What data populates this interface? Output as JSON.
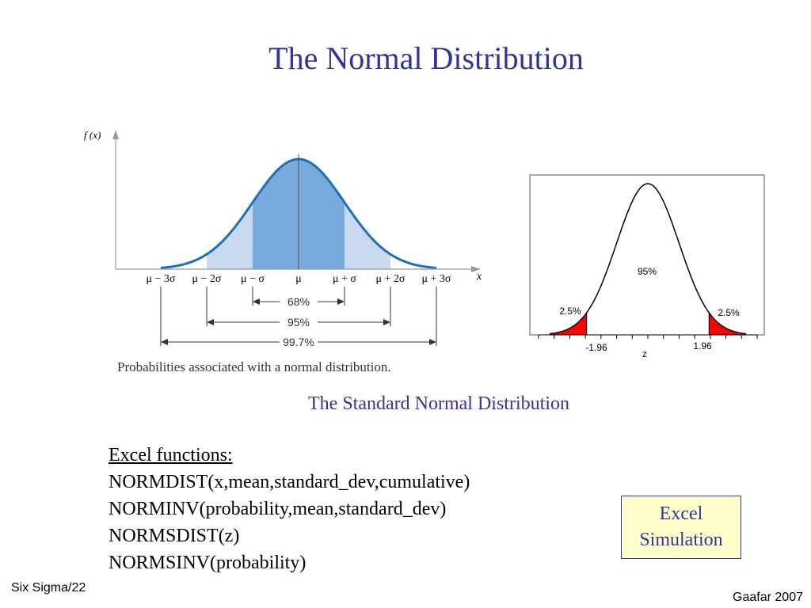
{
  "slide": {
    "title": "The Normal Distribution",
    "subtitle": "The Standard Normal Distribution"
  },
  "left_figure": {
    "y_axis_label": "f (x)",
    "x_axis_label": "x",
    "tick_labels": [
      "μ − 3σ",
      "μ − 2σ",
      "μ − σ",
      "μ",
      "μ + σ",
      "μ + 2σ",
      "μ + 3σ"
    ],
    "intervals": [
      {
        "label": "68%",
        "from_sd": -1,
        "to_sd": 1
      },
      {
        "label": "95%",
        "from_sd": -2,
        "to_sd": 2
      },
      {
        "label": "99.7%",
        "from_sd": -3,
        "to_sd": 3
      }
    ],
    "caption": "Probabilities associated with a normal distribution.",
    "colors": {
      "curve": "#1f6fb8",
      "band_inner": "#7aaadc",
      "band_outer": "#c9d9f0"
    }
  },
  "chart_data": {
    "type": "area",
    "xlabel": "z",
    "critical_values": [
      -1.96,
      1.96
    ],
    "tick_labels": [
      "-1.96",
      "1.96"
    ],
    "annotations": [
      {
        "label": "95%",
        "region": "center"
      },
      {
        "label": "2.5%",
        "region": "left tail"
      },
      {
        "label": "2.5%",
        "region": "right tail"
      }
    ],
    "xlim": [
      -3.5,
      3.5
    ],
    "tail_color": "#ff0000"
  },
  "excel": {
    "heading": "Excel functions:",
    "functions": [
      "NORMDIST(x,mean,standard_dev,cumulative)",
      "NORMINV(probability,mean,standard_dev)",
      "NORMSDIST(z)",
      "NORMSINV(probability)"
    ]
  },
  "simulation_button": {
    "line1": "Excel",
    "line2": "Simulation"
  },
  "footer": {
    "left": "Six Sigma/22",
    "right": "Gaafar 2007"
  }
}
